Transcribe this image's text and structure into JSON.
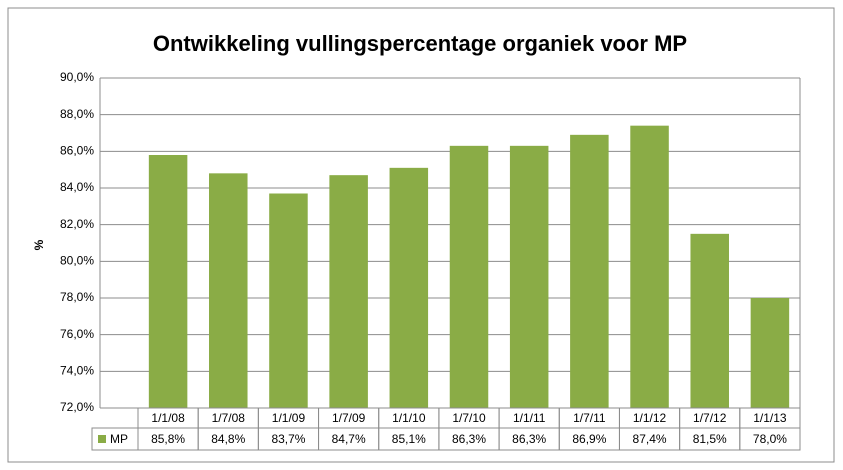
{
  "chart_data": {
    "type": "bar",
    "title": "Ontwikkeling vullingspercentage organiek voor MP",
    "y_label": "%",
    "categories": [
      "1/1/08",
      "1/7/08",
      "1/1/09",
      "1/7/09",
      "1/1/10",
      "1/7/10",
      "1/1/11",
      "1/7/11",
      "1/1/12",
      "1/7/12",
      "1/1/13"
    ],
    "series": [
      {
        "name": "MP",
        "color": "#8aac46",
        "values": [
          85.8,
          84.8,
          83.7,
          84.7,
          85.1,
          86.3,
          86.3,
          86.9,
          87.4,
          81.5,
          78.0
        ],
        "value_labels": [
          "85,8%",
          "84,8%",
          "83,7%",
          "84,7%",
          "85,1%",
          "86,3%",
          "86,3%",
          "86,9%",
          "87,4%",
          "81,5%",
          "78,0%"
        ]
      }
    ],
    "ylim": [
      72,
      90
    ],
    "yticks": [
      {
        "value": 72,
        "label": "72,0%"
      },
      {
        "value": 74,
        "label": "74,0%"
      },
      {
        "value": 76,
        "label": "76,0%"
      },
      {
        "value": 78,
        "label": "78,0%"
      },
      {
        "value": 80,
        "label": "80,0%"
      },
      {
        "value": 82,
        "label": "82,0%"
      },
      {
        "value": 84,
        "label": "84,0%"
      },
      {
        "value": 86,
        "label": "86,0%"
      },
      {
        "value": 88,
        "label": "88,0%"
      },
      {
        "value": 90,
        "label": "90,0%"
      }
    ],
    "grid": true
  }
}
